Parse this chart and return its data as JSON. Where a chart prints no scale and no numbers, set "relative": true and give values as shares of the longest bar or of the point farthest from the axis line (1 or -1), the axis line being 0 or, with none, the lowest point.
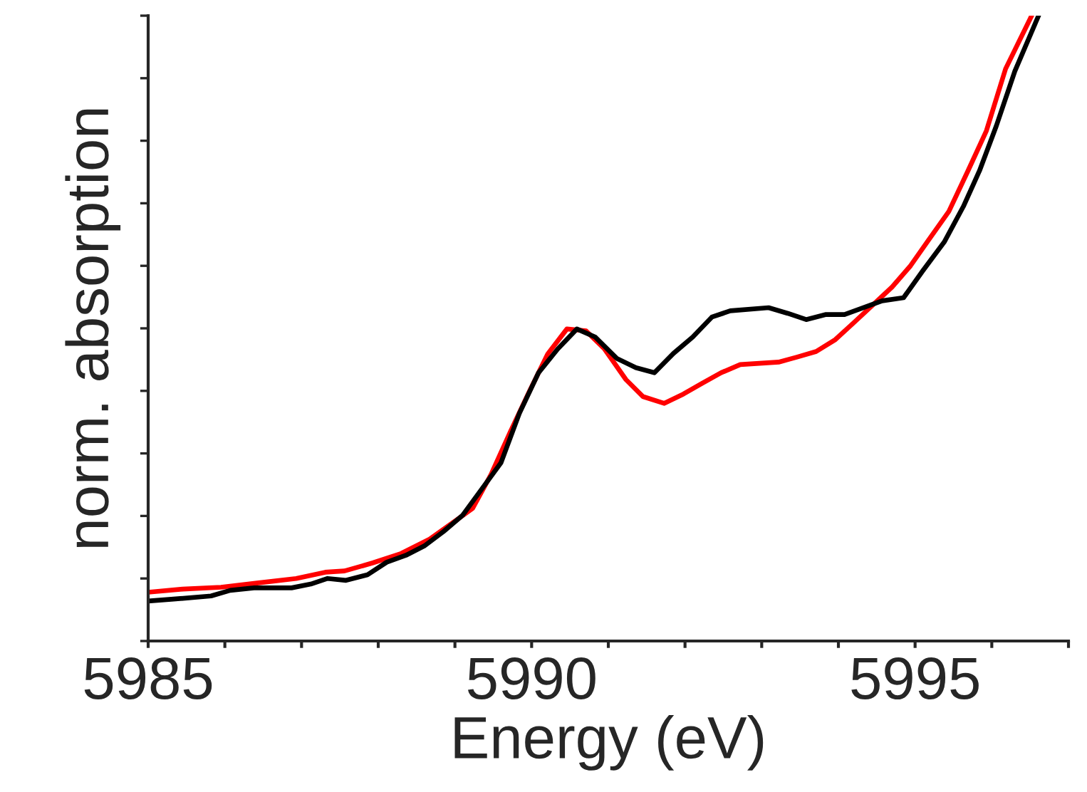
{
  "chart_data": {
    "type": "line",
    "xlabel": "Energy (eV)",
    "ylabel": "norm. absorption",
    "relative": true,
    "xlim": [
      5985,
      5997
    ],
    "xticks": [
      5985,
      {
        "value": 5986,
        "label": null
      },
      {
        "value": 5987,
        "label": null
      },
      {
        "value": 5988,
        "label": null
      },
      {
        "value": 5989,
        "label": null
      },
      5990,
      {
        "value": 5991,
        "label": null
      },
      {
        "value": 5992,
        "label": null
      },
      {
        "value": 5993,
        "label": null
      },
      {
        "value": 5994,
        "label": null
      },
      5995,
      {
        "value": 5996,
        "label": null
      },
      {
        "value": 5997,
        "label": null
      }
    ],
    "tick_labels": "x",
    "grid": false,
    "legend": false,
    "series": [
      {
        "color": "#ff0000",
        "x": [
          5985.0,
          5985.45,
          5985.95,
          5986.44,
          5986.93,
          5987.31,
          5987.56,
          5987.93,
          5988.3,
          5988.67,
          5988.98,
          5989.23,
          5989.47,
          5989.72,
          5989.97,
          5990.21,
          5990.46,
          5990.71,
          5990.95,
          5991.23,
          5991.45,
          5991.73,
          5991.98,
          5992.22,
          5992.47,
          5992.72,
          5993.22,
          5993.46,
          5993.71,
          5993.96,
          5994.2,
          5994.7,
          5994.94,
          5995.18,
          5995.44,
          5995.69,
          5995.93,
          5996.18,
          5996.52
        ],
        "values": [
          0.078,
          0.083,
          0.086,
          0.093,
          0.1,
          0.11,
          0.112,
          0.125,
          0.14,
          0.163,
          0.19,
          0.212,
          0.266,
          0.334,
          0.399,
          0.459,
          0.499,
          0.496,
          0.467,
          0.418,
          0.391,
          0.38,
          0.395,
          0.412,
          0.429,
          0.442,
          0.446,
          0.454,
          0.463,
          0.482,
          0.509,
          0.566,
          0.6,
          0.642,
          0.687,
          0.752,
          0.816,
          0.915,
          1.0
        ]
      },
      {
        "color": "#000000",
        "x": [
          5985.0,
          5985.33,
          5985.82,
          5986.07,
          5986.38,
          5986.87,
          5987.12,
          5987.34,
          5987.58,
          5987.86,
          5988.11,
          5988.36,
          5988.6,
          5988.85,
          5989.1,
          5989.35,
          5989.6,
          5989.84,
          5990.09,
          5990.34,
          5990.59,
          5990.83,
          5991.11,
          5991.36,
          5991.6,
          5991.85,
          5992.1,
          5992.35,
          5992.59,
          5993.09,
          5993.34,
          5993.58,
          5993.83,
          5994.08,
          5994.57,
          5994.85,
          5995.1,
          5995.38,
          5995.63,
          5995.84,
          5996.06,
          5996.3,
          5996.61
        ],
        "values": [
          0.064,
          0.067,
          0.072,
          0.081,
          0.085,
          0.085,
          0.091,
          0.1,
          0.097,
          0.106,
          0.126,
          0.137,
          0.152,
          0.175,
          0.201,
          0.243,
          0.285,
          0.364,
          0.429,
          0.467,
          0.499,
          0.486,
          0.452,
          0.437,
          0.429,
          0.46,
          0.486,
          0.518,
          0.528,
          0.533,
          0.524,
          0.514,
          0.522,
          0.522,
          0.544,
          0.549,
          0.592,
          0.638,
          0.695,
          0.752,
          0.824,
          0.911,
          1.0
        ]
      }
    ]
  }
}
